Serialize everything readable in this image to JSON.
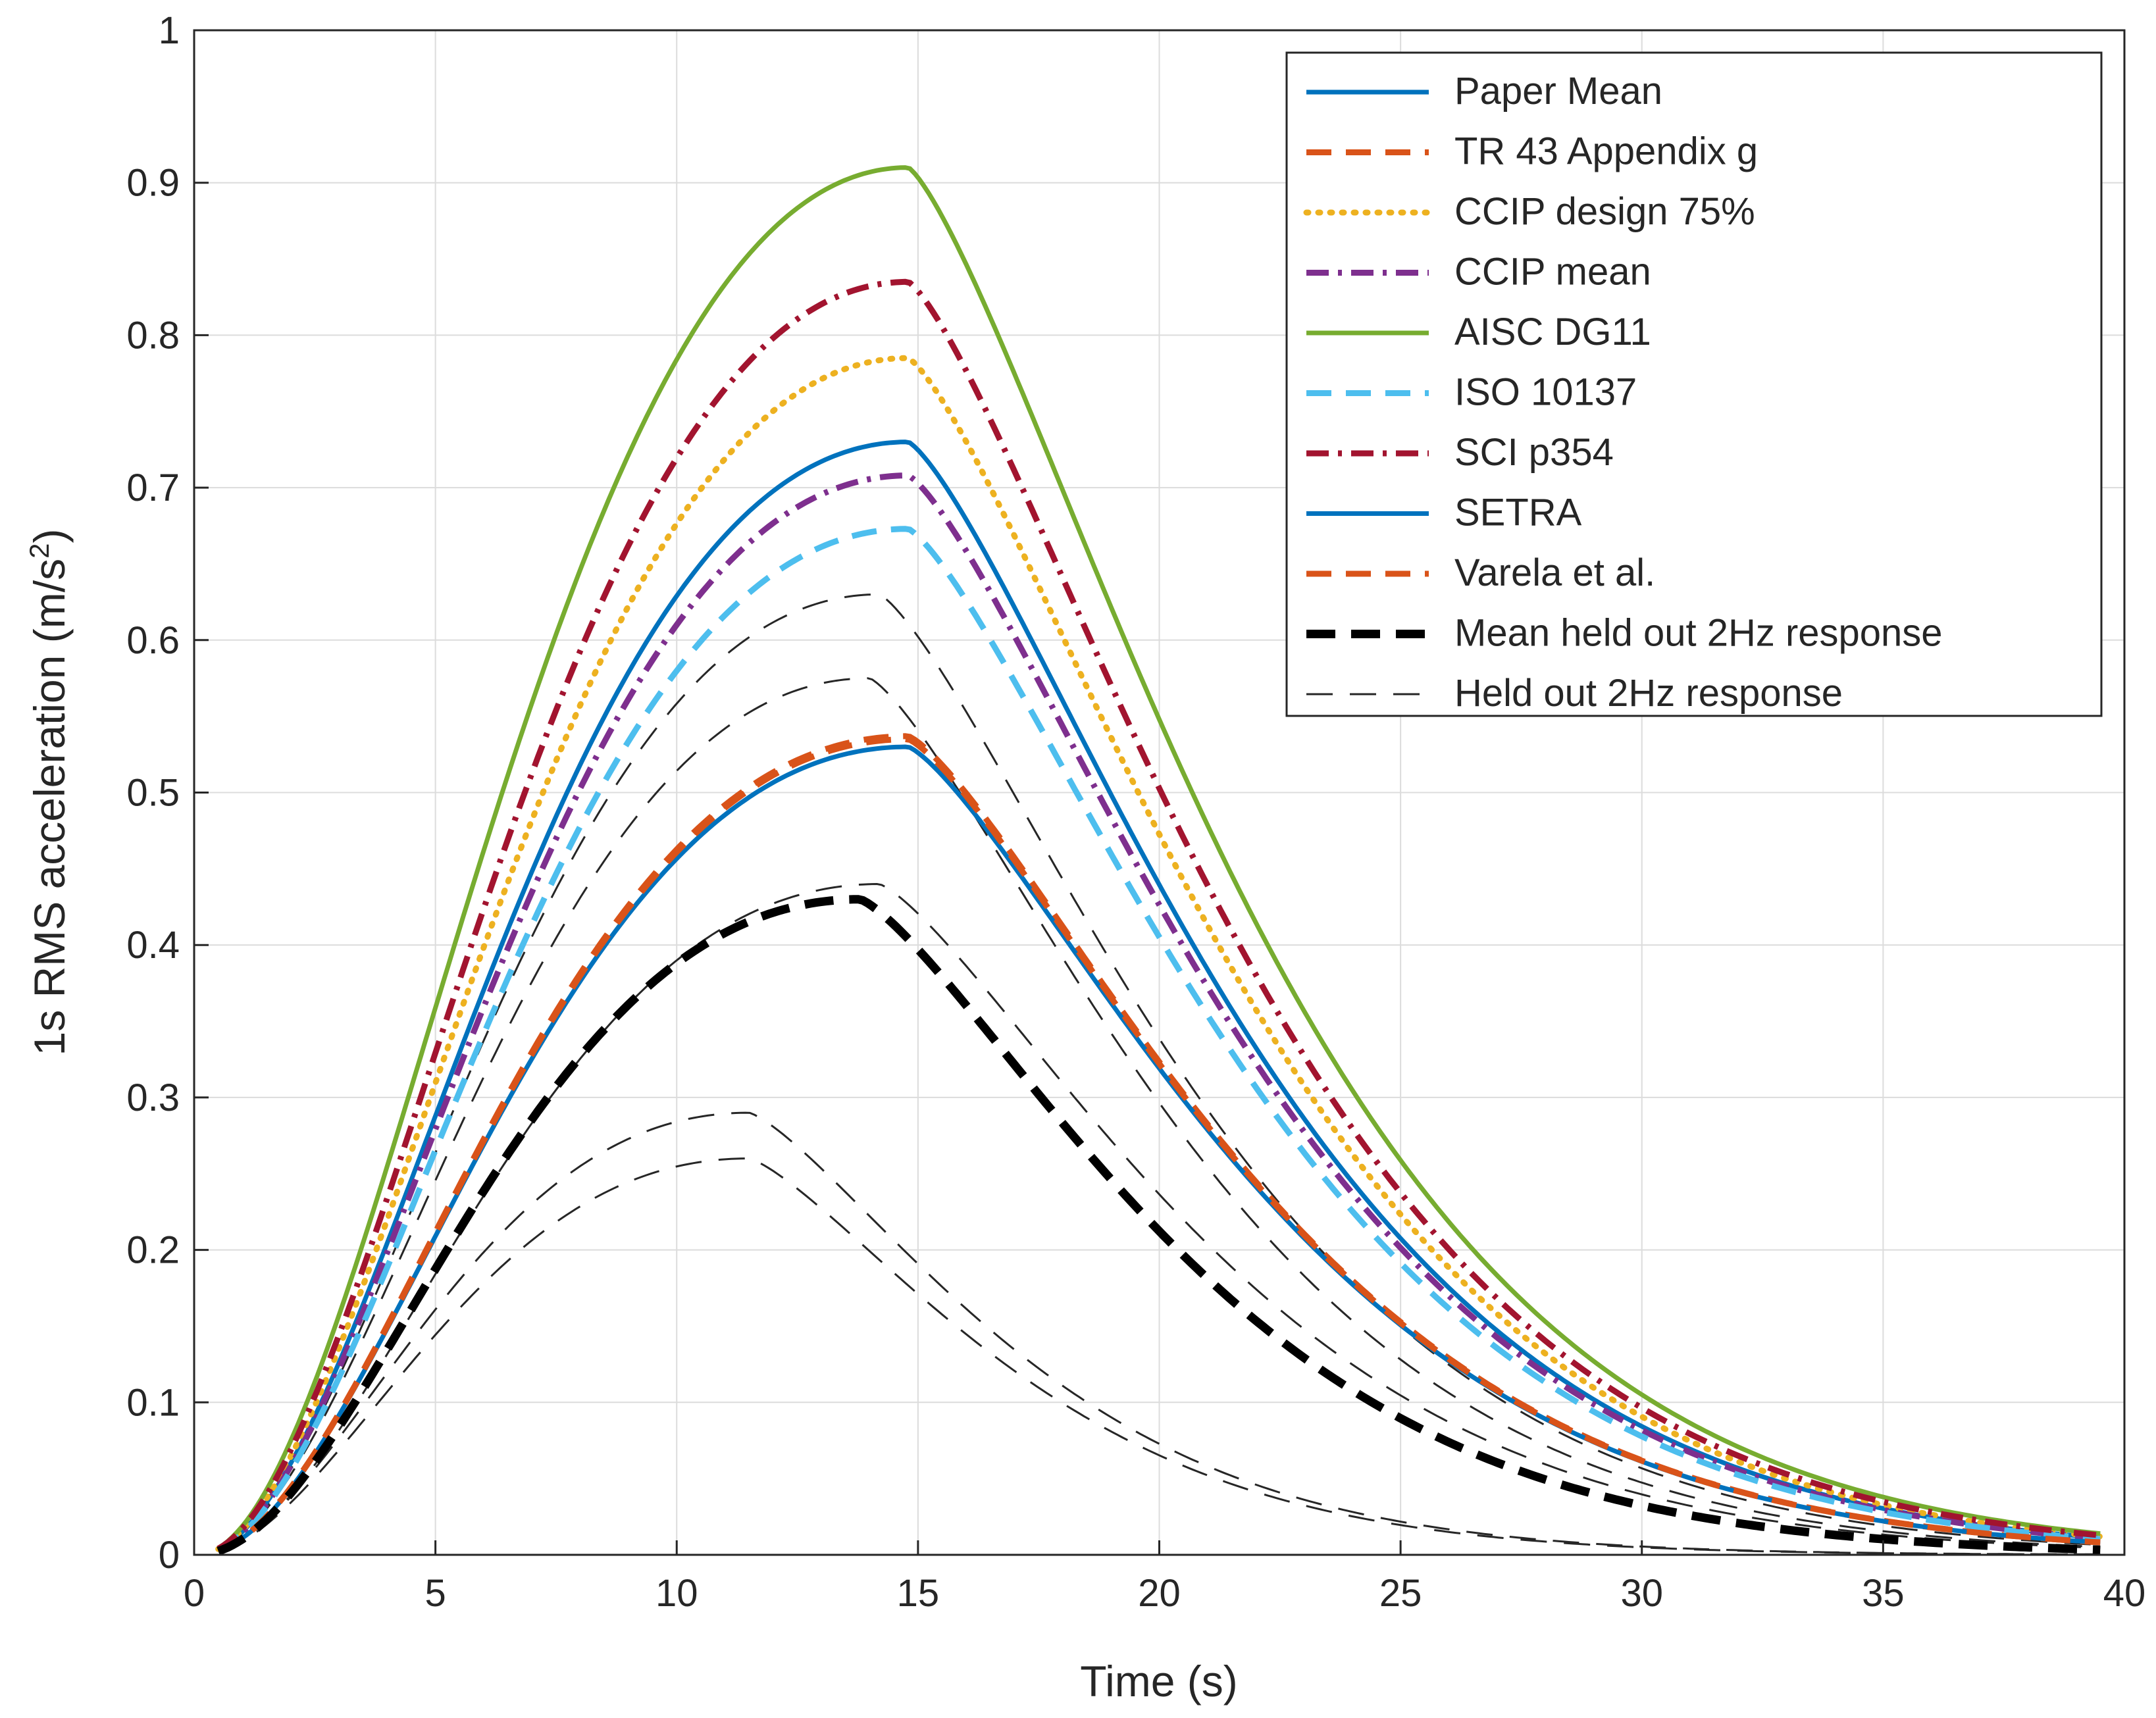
{
  "chart_data": {
    "type": "line",
    "xlabel": "Time (s)",
    "ylabel_main": "1s RMS acceleration (m/s",
    "ylabel_sup": "2",
    "ylabel_tail": ")",
    "xlim": [
      0,
      40
    ],
    "ylim": [
      0,
      1
    ],
    "xticks": [
      0,
      5,
      10,
      15,
      20,
      25,
      30,
      35,
      40
    ],
    "xtick_labels": [
      "0",
      "5",
      "10",
      "15",
      "20",
      "25",
      "30",
      "35",
      "40"
    ],
    "yticks": [
      0,
      0.1,
      0.2,
      0.3,
      0.4,
      0.5,
      0.6,
      0.7,
      0.8,
      0.9,
      1
    ],
    "ytick_labels": [
      "0",
      "0.1",
      "0.2",
      "0.3",
      "0.4",
      "0.5",
      "0.6",
      "0.7",
      "0.8",
      "0.9",
      "1"
    ],
    "grid": true,
    "legend_position": "top-right",
    "x_start": 0.5,
    "x_end": 39.5,
    "series": [
      {
        "name": "Paper Mean",
        "style": "solid",
        "color": "#0072BD",
        "peak": 0.73,
        "peak_t": 14.8,
        "width": 1.0
      },
      {
        "name": "TR 43 Appendix g",
        "style": "dashed",
        "color": "#D95319",
        "peak": 0.537,
        "peak_t": 14.8,
        "width": 1.0
      },
      {
        "name": "CCIP design 75%",
        "style": "dotted",
        "color": "#EDB120",
        "peak": 0.785,
        "peak_t": 14.8,
        "width": 1.0
      },
      {
        "name": "CCIP mean",
        "style": "dashdot",
        "color": "#7E2F8E",
        "peak": 0.708,
        "peak_t": 14.8,
        "width": 1.0
      },
      {
        "name": "AISC DG11",
        "style": "solid",
        "color": "#77AC30",
        "peak": 0.91,
        "peak_t": 14.8,
        "width": 1.0
      },
      {
        "name": "ISO 10137",
        "style": "dashed",
        "color": "#4DBEEE",
        "peak": 0.673,
        "peak_t": 14.8,
        "width": 1.0
      },
      {
        "name": "SCI p354",
        "style": "dashdot",
        "color": "#A2142F",
        "peak": 0.835,
        "peak_t": 14.8,
        "width": 1.0
      },
      {
        "name": "SETRA",
        "style": "solid",
        "color": "#0072BD",
        "peak": 0.53,
        "peak_t": 14.8,
        "width": 1.0
      },
      {
        "name": "Varela et al.",
        "style": "dashed",
        "color": "#D95319",
        "peak": 0.535,
        "peak_t": 14.8,
        "width": 1.0
      },
      {
        "name": "Mean held out 2Hz response",
        "style": "dashed-bold",
        "color": "#000000",
        "peak": 0.43,
        "peak_t": 13.8,
        "width": 1.0
      },
      {
        "name": "Held out 2Hz response",
        "style": "dashed-thin",
        "color": "#262626",
        "peak": 0.63,
        "peak_t": 14.2,
        "width": 1.0
      }
    ],
    "held_out_curves": [
      {
        "peak": 0.63,
        "peak_t": 14.2
      },
      {
        "peak": 0.575,
        "peak_t": 14.0
      },
      {
        "peak": 0.44,
        "peak_t": 14.2
      },
      {
        "peak": 0.29,
        "peak_t": 11.5
      },
      {
        "peak": 0.26,
        "peak_t": 11.5
      }
    ]
  }
}
